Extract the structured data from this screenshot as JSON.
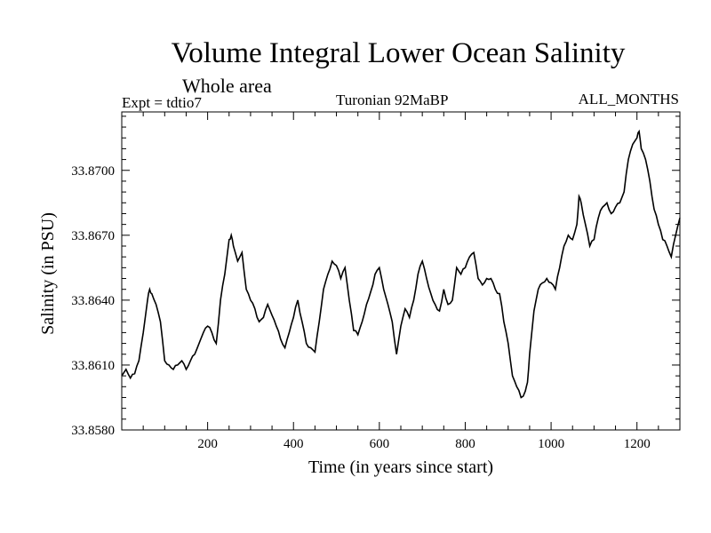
{
  "chart_data": {
    "type": "line",
    "title": "Volume Integral Lower Ocean Salinity",
    "subtitle": "Whole area",
    "experiment_label": "Expt = tdtio7",
    "center_label": "Turonian  92MaBP",
    "right_label": "ALL_MONTHS",
    "xlabel": "Time (in years since start)",
    "ylabel": "Salinity (in PSU)",
    "xlim": [
      0,
      1300
    ],
    "ylim": [
      33.858,
      33.8727
    ],
    "x_ticks": [
      200,
      400,
      600,
      800,
      1000,
      1200
    ],
    "x_tick_labels": [
      "200",
      "400",
      "600",
      "800",
      "1000",
      "1200"
    ],
    "y_ticks": [
      33.858,
      33.861,
      33.864,
      33.867,
      33.87
    ],
    "y_tick_labels": [
      "33.8580",
      "33.8610",
      "33.8640",
      "33.8670",
      "33.8700"
    ],
    "series": [
      {
        "name": "Salinity",
        "x": [
          0,
          10,
          20,
          30,
          40,
          50,
          60,
          65,
          70,
          80,
          90,
          100,
          110,
          120,
          130,
          140,
          150,
          160,
          170,
          180,
          190,
          200,
          210,
          220,
          230,
          240,
          250,
          255,
          260,
          270,
          280,
          290,
          300,
          310,
          320,
          330,
          340,
          350,
          360,
          370,
          380,
          390,
          400,
          410,
          420,
          430,
          440,
          450,
          460,
          470,
          480,
          490,
          500,
          510,
          520,
          530,
          540,
          550,
          560,
          570,
          580,
          590,
          600,
          610,
          620,
          630,
          640,
          650,
          660,
          670,
          680,
          690,
          700,
          710,
          720,
          730,
          740,
          750,
          760,
          770,
          780,
          790,
          800,
          810,
          820,
          830,
          840,
          850,
          860,
          870,
          880,
          890,
          900,
          910,
          920,
          930,
          940,
          945,
          950,
          960,
          970,
          980,
          990,
          1000,
          1010,
          1020,
          1030,
          1040,
          1050,
          1060,
          1065,
          1070,
          1080,
          1090,
          1100,
          1110,
          1120,
          1130,
          1140,
          1150,
          1160,
          1170,
          1180,
          1190,
          1200,
          1205,
          1210,
          1220,
          1230,
          1240,
          1250,
          1260,
          1270,
          1280,
          1290,
          1300
        ],
        "values": [
          33.8605,
          33.8608,
          33.8604,
          33.8606,
          33.8612,
          33.8625,
          33.864,
          33.8645,
          33.8643,
          33.8638,
          33.863,
          33.8612,
          33.861,
          33.8608,
          33.861,
          33.8612,
          33.8608,
          33.8612,
          33.8615,
          33.862,
          33.8625,
          33.8628,
          33.8625,
          33.862,
          33.864,
          33.8652,
          33.8668,
          33.867,
          33.8665,
          33.8658,
          33.8662,
          33.8645,
          33.864,
          33.8636,
          33.863,
          33.8632,
          33.8638,
          33.8633,
          33.8628,
          33.8622,
          33.8618,
          33.8625,
          33.8632,
          33.864,
          33.863,
          33.862,
          33.8618,
          33.8616,
          33.863,
          33.8645,
          33.8652,
          33.8658,
          33.8656,
          33.865,
          33.8655,
          33.864,
          33.8626,
          33.8624,
          33.863,
          33.8638,
          33.8644,
          33.8652,
          33.8655,
          33.8645,
          33.8638,
          33.863,
          33.8615,
          33.8628,
          33.8636,
          33.8632,
          33.864,
          33.8652,
          33.8658,
          33.865,
          33.8643,
          33.8638,
          33.8635,
          33.8645,
          33.8638,
          33.864,
          33.8655,
          33.8652,
          33.8655,
          33.866,
          33.8662,
          33.865,
          33.8647,
          33.865,
          33.865,
          33.8645,
          33.8643,
          33.863,
          33.862,
          33.8605,
          33.86,
          33.8595,
          33.8598,
          33.8602,
          33.8615,
          33.8635,
          33.8645,
          33.8648,
          33.865,
          33.8648,
          33.8645,
          33.8655,
          33.8665,
          33.867,
          33.8668,
          33.8675,
          33.8688,
          33.8685,
          33.8675,
          33.8665,
          33.8668,
          33.8678,
          33.8683,
          33.8685,
          33.868,
          33.8683,
          33.8685,
          33.869,
          33.8705,
          33.8712,
          33.8715,
          33.8718,
          33.871,
          33.8705,
          33.8695,
          33.8682,
          33.8675,
          33.8668,
          33.8665,
          33.866,
          33.867,
          33.8678
        ]
      }
    ]
  }
}
